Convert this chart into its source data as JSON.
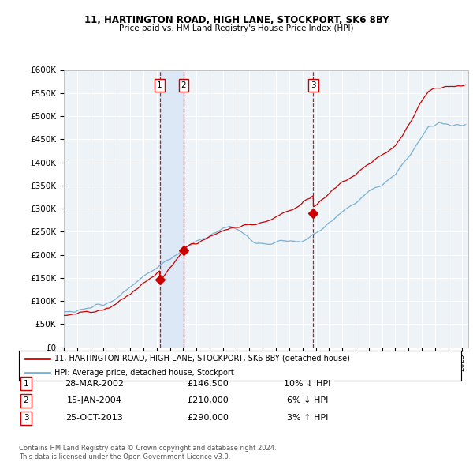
{
  "title1": "11, HARTINGTON ROAD, HIGH LANE, STOCKPORT, SK6 8BY",
  "title2": "Price paid vs. HM Land Registry's House Price Index (HPI)",
  "legend_line1": "11, HARTINGTON ROAD, HIGH LANE, STOCKPORT, SK6 8BY (detached house)",
  "legend_line2": "HPI: Average price, detached house, Stockport",
  "transactions": [
    {
      "num": 1,
      "date": "28-MAR-2002",
      "price": "£146,500",
      "hpi_rel": "10% ↓ HPI",
      "year": 2002.23,
      "value": 146500
    },
    {
      "num": 2,
      "date": "15-JAN-2004",
      "price": "£210,000",
      "hpi_rel": "6% ↓ HPI",
      "year": 2004.04,
      "value": 210000
    },
    {
      "num": 3,
      "date": "25-OCT-2013",
      "price": "£290,000",
      "hpi_rel": "3% ↑ HPI",
      "year": 2013.81,
      "value": 290000
    }
  ],
  "footer1": "Contains HM Land Registry data © Crown copyright and database right 2024.",
  "footer2": "This data is licensed under the Open Government Licence v3.0.",
  "red_color": "#cc0000",
  "blue_color": "#7ab0d4",
  "shade_color": "#dce8f5",
  "dashed_color": "#cc0000",
  "bg_plot_color": "#eef3f8",
  "background_color": "#ffffff",
  "grid_color": "#ffffff",
  "ylim": [
    0,
    600000
  ],
  "xlim_start": 1995.0,
  "xlim_end": 2025.5
}
